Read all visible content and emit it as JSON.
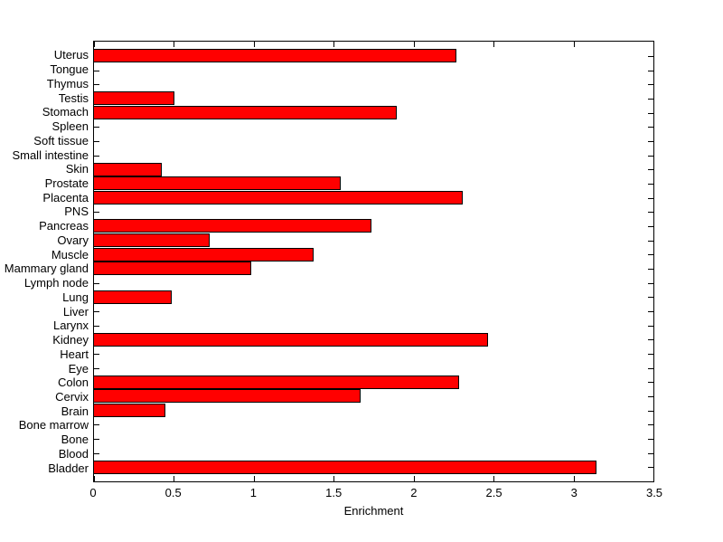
{
  "chart_data": {
    "type": "bar",
    "orientation": "horizontal",
    "title": "",
    "xlabel": "Enrichment",
    "ylabel": "",
    "xlim": [
      0,
      3.5
    ],
    "xticks": [
      0,
      0.5,
      1,
      1.5,
      2,
      2.5,
      3,
      3.5
    ],
    "xtick_labels": [
      "0",
      "0.5",
      "1",
      "1.5",
      "2",
      "2.5",
      "3",
      "3.5"
    ],
    "grid": false,
    "legend": false,
    "bar_color": "#ff0000",
    "bar_border_color": "#000000",
    "background_color": "#ffffff",
    "categories": [
      "Uterus",
      "Tongue",
      "Thymus",
      "Testis",
      "Stomach",
      "Spleen",
      "Soft tissue",
      "Small intestine",
      "Skin",
      "Prostate",
      "Placenta",
      "PNS",
      "Pancreas",
      "Ovary",
      "Muscle",
      "Mammary gland",
      "Lymph node",
      "Lung",
      "Liver",
      "Larynx",
      "Kidney",
      "Heart",
      "Eye",
      "Colon",
      "Cervix",
      "Brain",
      "Bone marrow",
      "Bone",
      "Blood",
      "Bladder"
    ],
    "values": [
      2.26,
      0,
      0,
      0.5,
      1.89,
      0,
      0,
      0,
      0.42,
      1.54,
      2.3,
      0,
      1.73,
      0.72,
      1.37,
      0.98,
      0,
      0.48,
      0,
      0,
      2.46,
      0,
      0,
      2.28,
      1.66,
      0.44,
      0,
      0,
      0,
      3.14
    ]
  }
}
